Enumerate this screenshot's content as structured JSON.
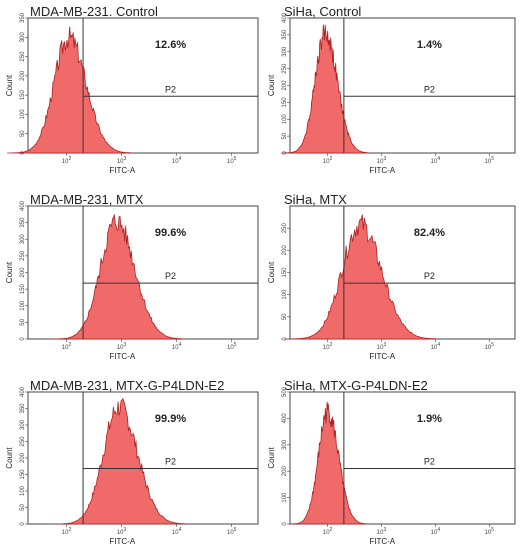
{
  "chart_data": [
    {
      "type": "histogram",
      "title": "MDA-MB-231. Control",
      "xlabel": "FITC-A",
      "ylabel": "Count",
      "x_scale": "log",
      "xlim": [
        20,
        300000
      ],
      "ylim": [
        0,
        350
      ],
      "xticks": [
        "10^2",
        "10^3",
        "10^4",
        "10^5"
      ],
      "yticks": [
        0,
        50,
        100,
        150,
        200,
        250,
        300,
        350
      ],
      "gate": {
        "name": "P2",
        "x_start": 200,
        "percent": "12.6%"
      },
      "hist": {
        "peak_x": 110,
        "peak_y": 330,
        "spread": 0.28
      }
    },
    {
      "type": "histogram",
      "title": "SiHa, Control",
      "xlabel": "FITC-A",
      "ylabel": "Count",
      "x_scale": "log",
      "xlim": [
        20,
        300000
      ],
      "ylim": [
        0,
        400
      ],
      "xticks": [
        "10^2",
        "10^3",
        "10^4",
        "10^5"
      ],
      "yticks": [
        0,
        50,
        100,
        150,
        200,
        250,
        300,
        350,
        400
      ],
      "gate": {
        "name": "P2",
        "x_start": 200,
        "percent": "1.4%"
      },
      "hist": {
        "peak_x": 90,
        "peak_y": 390,
        "spread": 0.2
      }
    },
    {
      "type": "histogram",
      "title": "MDA-MB-231, MTX",
      "xlabel": "FITC-A",
      "ylabel": "Count",
      "x_scale": "log",
      "xlim": [
        20,
        300000
      ],
      "ylim": [
        0,
        400
      ],
      "xticks": [
        "10^2",
        "10^3",
        "10^4",
        "10^5"
      ],
      "yticks": [
        0,
        50,
        100,
        150,
        200,
        250,
        300,
        350,
        400
      ],
      "gate": {
        "name": "P2",
        "x_start": 200,
        "percent": "99.6%"
      },
      "hist": {
        "peak_x": 800,
        "peak_y": 390,
        "spread": 0.3
      }
    },
    {
      "type": "histogram",
      "title": "SiHa, MTX",
      "xlabel": "FITC-A",
      "ylabel": "Count",
      "x_scale": "log",
      "xlim": [
        20,
        300000
      ],
      "ylim": [
        0,
        300
      ],
      "xticks": [
        "10^2",
        "10^3",
        "10^4",
        "10^5"
      ],
      "yticks": [
        0,
        50,
        100,
        150,
        200,
        250
      ],
      "gate": {
        "name": "P2",
        "x_start": 200,
        "percent": "82.4%"
      },
      "hist": {
        "peak_x": 400,
        "peak_y": 285,
        "spread": 0.35
      }
    },
    {
      "type": "histogram",
      "title": "MDA-MB-231, MTX-G-P4LDN-E2",
      "xlabel": "FITC-A",
      "ylabel": "Count",
      "x_scale": "log",
      "xlim": [
        20,
        300000
      ],
      "ylim": [
        0,
        400
      ],
      "xticks": [
        "10^2",
        "10^3",
        "10^4",
        "10^5"
      ],
      "yticks": [
        0,
        50,
        100,
        150,
        200,
        250,
        300,
        350,
        400
      ],
      "gate": {
        "name": "P2",
        "x_start": 200,
        "percent": "99.9%"
      },
      "hist": {
        "peak_x": 900,
        "peak_y": 390,
        "spread": 0.3
      }
    },
    {
      "type": "histogram",
      "title": "SiHa, MTX-G-P4LDN-E2",
      "xlabel": "FITC-A",
      "ylabel": "Count",
      "x_scale": "log",
      "xlim": [
        20,
        300000
      ],
      "ylim": [
        0,
        500
      ],
      "xticks": [
        "10^2",
        "10^3",
        "10^4",
        "10^5"
      ],
      "yticks": [
        0,
        100,
        200,
        300,
        400,
        500
      ],
      "gate": {
        "name": "P2",
        "x_start": 200,
        "percent": "1.9%"
      },
      "hist": {
        "peak_x": 100,
        "peak_y": 470,
        "spread": 0.18
      }
    }
  ]
}
